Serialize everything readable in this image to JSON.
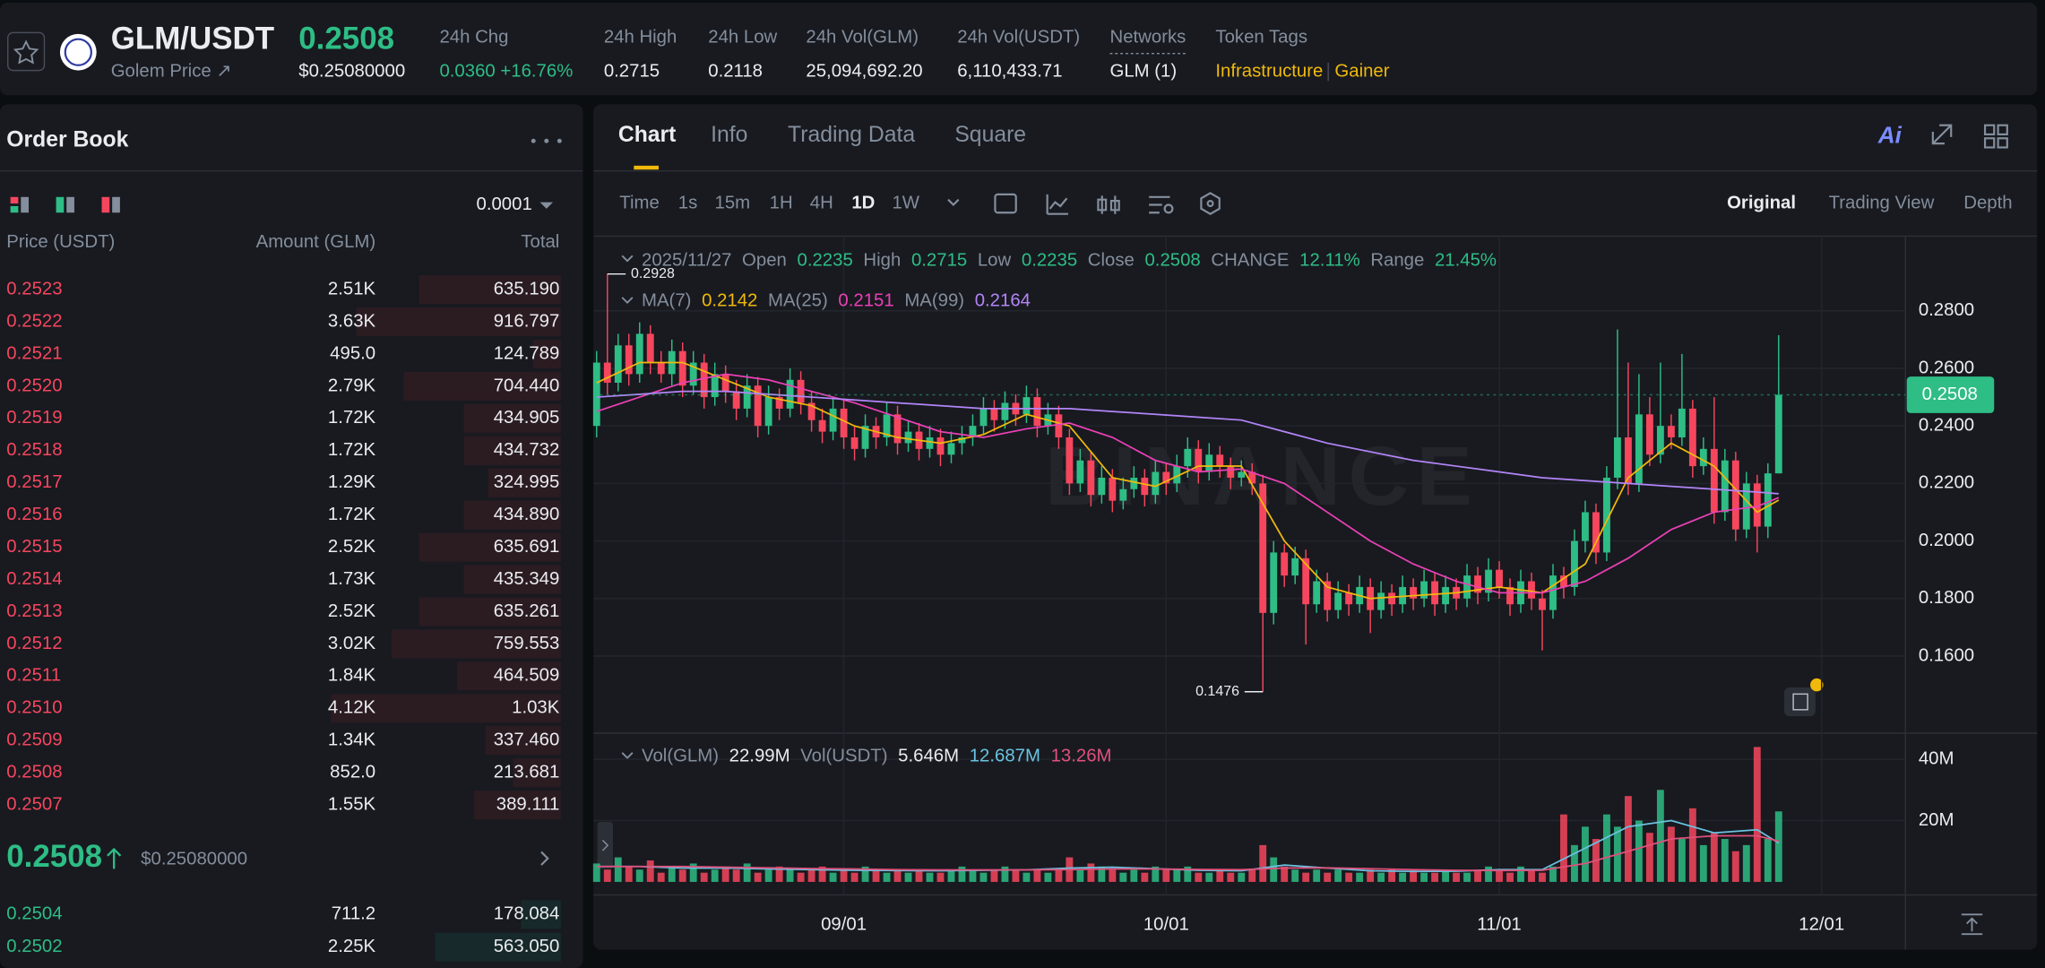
{
  "header": {
    "pair": "GLM/USDT",
    "subtitle": "Golem Price ↗",
    "price": "0.2508",
    "price_usd": "$0.25080000",
    "stats": [
      {
        "label": "24h Chg",
        "value": "0.0360 +16.76%"
      },
      {
        "label": "24h High",
        "value": "0.2715"
      },
      {
        "label": "24h Low",
        "value": "0.2118"
      },
      {
        "label": "24h Vol(GLM)",
        "value": "25,094,692.20"
      },
      {
        "label": "24h Vol(USDT)",
        "value": "6,110,433.71"
      }
    ],
    "networks": {
      "label": "Networks",
      "value": "GLM (1)"
    },
    "token_tags": {
      "label": "Token Tags",
      "tags": [
        "Infrastructure",
        "Gainer"
      ]
    }
  },
  "order_book": {
    "title": "Order Book",
    "precision": "0.0001",
    "columns": [
      "Price (USDT)",
      "Amount (GLM)",
      "Total"
    ],
    "asks": [
      [
        "0.2523",
        "2.51K",
        "635.190"
      ],
      [
        "0.2522",
        "3.63K",
        "916.797"
      ],
      [
        "0.2521",
        "495.0",
        "124.789"
      ],
      [
        "0.2520",
        "2.79K",
        "704.440"
      ],
      [
        "0.2519",
        "1.72K",
        "434.905"
      ],
      [
        "0.2518",
        "1.72K",
        "434.732"
      ],
      [
        "0.2517",
        "1.29K",
        "324.995"
      ],
      [
        "0.2516",
        "1.72K",
        "434.890"
      ],
      [
        "0.2515",
        "2.52K",
        "635.691"
      ],
      [
        "0.2514",
        "1.73K",
        "435.349"
      ],
      [
        "0.2513",
        "2.52K",
        "635.261"
      ],
      [
        "0.2512",
        "3.02K",
        "759.553"
      ],
      [
        "0.2511",
        "1.84K",
        "464.509"
      ],
      [
        "0.2510",
        "4.12K",
        "1.03K"
      ],
      [
        "0.2509",
        "1.34K",
        "337.460"
      ],
      [
        "0.2508",
        "852.0",
        "213.681"
      ],
      [
        "0.2507",
        "1.55K",
        "389.111"
      ]
    ],
    "mid": {
      "price": "0.2508",
      "usd": "$0.25080000"
    },
    "bids": [
      [
        "0.2504",
        "711.2",
        "178.084"
      ],
      [
        "0.2502",
        "2.25K",
        "563.050"
      ]
    ]
  },
  "chart_panel": {
    "tabs": [
      "Chart",
      "Info",
      "Trading Data",
      "Square"
    ],
    "ai": "Ai",
    "intervals": [
      "Time",
      "1s",
      "15m",
      "1H",
      "4H",
      "1D",
      "1W"
    ],
    "active_interval": "1D",
    "views": [
      "Original",
      "Trading View",
      "Depth"
    ]
  },
  "chart_data": {
    "type": "candlestick",
    "date": "2025/11/27",
    "ohlc_labels": [
      "Open",
      "High",
      "Low",
      "Close"
    ],
    "change": {
      "label": "CHANGE",
      "value": "12.11%"
    },
    "range": {
      "label": "Range",
      "value": "21.45%"
    },
    "watermark": "BINANCE",
    "up_color": "#2ebd85",
    "down_color": "#f6465d",
    "xlim": [
      -0.3,
      121.8
    ],
    "xticks": [
      {
        "value": 23,
        "label": "09/01"
      },
      {
        "value": 53,
        "label": "10/01"
      },
      {
        "value": 84,
        "label": "11/01"
      },
      {
        "value": 114,
        "label": "12/01"
      }
    ],
    "ylim": [
      0.1332,
      0.3055
    ],
    "yticks": [
      {
        "value": 0.16,
        "label": "0.1600"
      },
      {
        "value": 0.18,
        "label": "0.1800"
      },
      {
        "value": 0.2,
        "label": "0.2000"
      },
      {
        "value": 0.22,
        "label": "0.2200"
      },
      {
        "value": 0.24,
        "label": "0.2400"
      },
      {
        "value": 0.26,
        "label": "0.2600"
      },
      {
        "value": 0.28,
        "label": "0.2800"
      }
    ],
    "grid": true,
    "candles": {
      "open": [
        0.24,
        0.262,
        0.255,
        0.268,
        0.258,
        0.272,
        0.262,
        0.258,
        0.266,
        0.254,
        0.262,
        0.25,
        0.258,
        0.252,
        0.246,
        0.254,
        0.24,
        0.25,
        0.246,
        0.256,
        0.248,
        0.242,
        0.238,
        0.246,
        0.236,
        0.232,
        0.24,
        0.236,
        0.244,
        0.234,
        0.238,
        0.232,
        0.236,
        0.23,
        0.234,
        0.236,
        0.24,
        0.246,
        0.242,
        0.248,
        0.244,
        0.25,
        0.24,
        0.244,
        0.236,
        0.22,
        0.228,
        0.216,
        0.222,
        0.214,
        0.218,
        0.222,
        0.216,
        0.224,
        0.22,
        0.226,
        0.232,
        0.224,
        0.23,
        0.226,
        0.222,
        0.224,
        0.22,
        0.175,
        0.196,
        0.188,
        0.194,
        0.178,
        0.186,
        0.176,
        0.182,
        0.178,
        0.184,
        0.176,
        0.182,
        0.178,
        0.184,
        0.18,
        0.186,
        0.178,
        0.184,
        0.18,
        0.188,
        0.182,
        0.19,
        0.184,
        0.178,
        0.186,
        0.18,
        0.176,
        0.188,
        0.184,
        0.2,
        0.21,
        0.196,
        0.222,
        0.236,
        0.22,
        0.244,
        0.23,
        0.24,
        0.236,
        0.246,
        0.226,
        0.232,
        0.21,
        0.228,
        0.204,
        0.22,
        0.205,
        0.2235
      ],
      "high": [
        0.266,
        0.2928,
        0.272,
        0.272,
        0.276,
        0.275,
        0.266,
        0.27,
        0.269,
        0.266,
        0.265,
        0.262,
        0.261,
        0.256,
        0.258,
        0.257,
        0.254,
        0.253,
        0.26,
        0.259,
        0.252,
        0.246,
        0.25,
        0.249,
        0.24,
        0.244,
        0.243,
        0.248,
        0.247,
        0.242,
        0.241,
        0.24,
        0.239,
        0.238,
        0.24,
        0.244,
        0.25,
        0.249,
        0.252,
        0.251,
        0.254,
        0.253,
        0.248,
        0.247,
        0.239,
        0.232,
        0.231,
        0.226,
        0.225,
        0.222,
        0.226,
        0.225,
        0.228,
        0.227,
        0.23,
        0.236,
        0.235,
        0.234,
        0.233,
        0.229,
        0.228,
        0.227,
        0.223,
        0.2,
        0.199,
        0.198,
        0.197,
        0.19,
        0.189,
        0.186,
        0.185,
        0.188,
        0.187,
        0.186,
        0.185,
        0.188,
        0.187,
        0.19,
        0.189,
        0.188,
        0.187,
        0.192,
        0.191,
        0.194,
        0.193,
        0.187,
        0.19,
        0.189,
        0.183,
        0.192,
        0.191,
        0.204,
        0.214,
        0.213,
        0.226,
        0.2735,
        0.262,
        0.258,
        0.25,
        0.262,
        0.244,
        0.265,
        0.249,
        0.236,
        0.25,
        0.232,
        0.231,
        0.224,
        0.223,
        0.227,
        0.2715
      ],
      "low": [
        0.236,
        0.251,
        0.252,
        0.254,
        0.255,
        0.258,
        0.255,
        0.254,
        0.25,
        0.251,
        0.246,
        0.247,
        0.248,
        0.242,
        0.243,
        0.236,
        0.237,
        0.242,
        0.243,
        0.244,
        0.238,
        0.234,
        0.235,
        0.232,
        0.228,
        0.229,
        0.232,
        0.233,
        0.23,
        0.231,
        0.228,
        0.229,
        0.226,
        0.227,
        0.23,
        0.233,
        0.237,
        0.238,
        0.239,
        0.24,
        0.241,
        0.236,
        0.237,
        0.232,
        0.216,
        0.217,
        0.212,
        0.213,
        0.21,
        0.211,
        0.215,
        0.212,
        0.213,
        0.216,
        0.217,
        0.222,
        0.22,
        0.221,
        0.222,
        0.218,
        0.219,
        0.216,
        0.1476,
        0.171,
        0.184,
        0.185,
        0.164,
        0.175,
        0.172,
        0.173,
        0.174,
        0.175,
        0.168,
        0.173,
        0.174,
        0.175,
        0.176,
        0.177,
        0.174,
        0.175,
        0.176,
        0.177,
        0.178,
        0.179,
        0.18,
        0.174,
        0.175,
        0.176,
        0.162,
        0.173,
        0.18,
        0.181,
        0.196,
        0.192,
        0.193,
        0.218,
        0.216,
        0.217,
        0.226,
        0.227,
        0.232,
        0.233,
        0.222,
        0.223,
        0.206,
        0.207,
        0.2,
        0.201,
        0.196,
        0.201,
        0.2235
      ],
      "close": [
        0.262,
        0.255,
        0.268,
        0.258,
        0.272,
        0.262,
        0.258,
        0.266,
        0.254,
        0.262,
        0.25,
        0.258,
        0.252,
        0.246,
        0.254,
        0.24,
        0.25,
        0.246,
        0.256,
        0.248,
        0.242,
        0.238,
        0.246,
        0.236,
        0.232,
        0.24,
        0.236,
        0.244,
        0.234,
        0.238,
        0.232,
        0.236,
        0.23,
        0.234,
        0.236,
        0.24,
        0.246,
        0.242,
        0.248,
        0.244,
        0.25,
        0.24,
        0.244,
        0.236,
        0.22,
        0.228,
        0.216,
        0.222,
        0.214,
        0.218,
        0.222,
        0.216,
        0.224,
        0.22,
        0.226,
        0.232,
        0.224,
        0.23,
        0.226,
        0.222,
        0.224,
        0.22,
        0.175,
        0.196,
        0.188,
        0.194,
        0.178,
        0.186,
        0.176,
        0.182,
        0.178,
        0.184,
        0.176,
        0.182,
        0.178,
        0.184,
        0.18,
        0.186,
        0.178,
        0.184,
        0.18,
        0.188,
        0.182,
        0.19,
        0.184,
        0.178,
        0.186,
        0.18,
        0.176,
        0.188,
        0.184,
        0.2,
        0.21,
        0.196,
        0.222,
        0.236,
        0.22,
        0.244,
        0.23,
        0.24,
        0.236,
        0.246,
        0.226,
        0.232,
        0.21,
        0.228,
        0.204,
        0.22,
        0.205,
        0.2235,
        0.2508
      ]
    },
    "ma": [
      {
        "name": "MA(7)",
        "color": "#f0b90b",
        "x": [
          0,
          4,
          8,
          12,
          16,
          20,
          24,
          28,
          32,
          36,
          40,
          44,
          48,
          52,
          56,
          60,
          64,
          68,
          72,
          76,
          80,
          84,
          88,
          92,
          96,
          100,
          104,
          108,
          110
        ],
        "values": [
          0.255,
          0.262,
          0.262,
          0.256,
          0.25,
          0.247,
          0.24,
          0.236,
          0.234,
          0.237,
          0.244,
          0.24,
          0.222,
          0.219,
          0.226,
          0.226,
          0.2,
          0.184,
          0.18,
          0.181,
          0.182,
          0.184,
          0.182,
          0.192,
          0.222,
          0.234,
          0.226,
          0.21,
          0.2142
        ]
      },
      {
        "name": "MA(25)",
        "color": "#eb40b5",
        "x": [
          0,
          4,
          8,
          12,
          16,
          20,
          24,
          28,
          32,
          36,
          40,
          44,
          48,
          52,
          56,
          60,
          64,
          68,
          72,
          76,
          80,
          84,
          88,
          92,
          96,
          100,
          104,
          108,
          110
        ],
        "values": [
          0.245,
          0.25,
          0.255,
          0.258,
          0.256,
          0.252,
          0.248,
          0.243,
          0.238,
          0.236,
          0.239,
          0.241,
          0.236,
          0.228,
          0.224,
          0.225,
          0.22,
          0.21,
          0.2,
          0.192,
          0.186,
          0.182,
          0.182,
          0.186,
          0.194,
          0.204,
          0.21,
          0.212,
          0.2151
        ]
      },
      {
        "name": "MA(99)",
        "color": "#b385f8",
        "x": [
          0,
          4,
          8,
          12,
          16,
          20,
          24,
          28,
          32,
          36,
          40,
          44,
          48,
          52,
          56,
          60,
          64,
          68,
          72,
          76,
          80,
          84,
          88,
          92,
          96,
          100,
          104,
          108,
          110
        ],
        "values": [
          0.25,
          0.251,
          0.252,
          0.252,
          0.251,
          0.25,
          0.249,
          0.248,
          0.247,
          0.246,
          0.246,
          0.246,
          0.245,
          0.244,
          0.243,
          0.242,
          0.238,
          0.234,
          0.231,
          0.228,
          0.226,
          0.224,
          0.222,
          0.221,
          0.22,
          0.219,
          0.218,
          0.217,
          0.2164
        ]
      }
    ],
    "volume": {
      "name": "Vol(GLM)",
      "label": "22.99M",
      "usdt_name": "Vol(USDT)",
      "usdt_label": "5.646M",
      "ylim": [
        0,
        46.8
      ],
      "yticks": [
        {
          "value": 20,
          "label": "20M"
        },
        {
          "value": 40,
          "label": "40M"
        }
      ],
      "values": [
        6,
        4,
        8,
        5,
        4,
        7,
        3,
        5,
        4,
        6,
        3,
        4,
        5,
        4,
        6,
        3,
        4,
        5,
        4,
        3,
        4,
        5,
        3,
        4,
        3,
        5,
        4,
        3,
        4,
        3,
        4,
        3,
        3,
        4,
        5,
        4,
        3,
        4,
        5,
        4,
        3,
        4,
        3,
        4,
        8,
        4,
        6,
        5,
        4,
        3,
        4,
        3,
        5,
        4,
        4,
        5,
        3,
        3,
        4,
        3,
        3,
        4,
        12,
        8,
        5,
        4,
        3,
        4,
        3,
        4,
        3,
        3,
        4,
        3,
        4,
        3,
        4,
        3,
        3,
        4,
        3,
        3,
        4,
        5,
        4,
        3,
        5,
        4,
        3,
        5,
        22,
        12,
        18,
        14,
        22,
        18,
        28,
        20,
        16,
        30,
        18,
        14,
        24,
        12,
        16,
        14,
        10,
        12,
        44,
        14,
        22.99
      ],
      "ma": [
        {
          "color": "#6ac3e0",
          "label": "12.687M",
          "x": [
            0,
            4,
            8,
            12,
            16,
            20,
            24,
            28,
            32,
            36,
            40,
            44,
            48,
            52,
            56,
            60,
            64,
            68,
            72,
            76,
            80,
            84,
            88,
            92,
            96,
            100,
            104,
            108,
            110
          ],
          "values": [
            5,
            5,
            4.5,
            4.5,
            4.2,
            4,
            3.8,
            3.7,
            3.6,
            3.8,
            3.9,
            4.5,
            4.8,
            4.3,
            3.8,
            3.6,
            5.5,
            4.5,
            3.6,
            3.4,
            3.5,
            4,
            4,
            11,
            18,
            20,
            16,
            17,
            12.687
          ]
        },
        {
          "color": "#e0507a",
          "label": "13.26M",
          "x": [
            0,
            4,
            8,
            12,
            16,
            20,
            24,
            28,
            32,
            36,
            40,
            44,
            48,
            52,
            56,
            60,
            64,
            68,
            72,
            76,
            80,
            84,
            88,
            92,
            96,
            100,
            104,
            108,
            110
          ],
          "values": [
            5,
            5,
            5,
            4.8,
            4.6,
            4.4,
            4.2,
            4,
            3.9,
            3.9,
            3.9,
            4,
            4.2,
            4.2,
            4.1,
            4,
            4.5,
            4.6,
            4.3,
            4,
            3.8,
            3.7,
            3.8,
            6,
            10,
            14,
            15,
            15,
            13.26
          ]
        }
      ]
    }
  }
}
